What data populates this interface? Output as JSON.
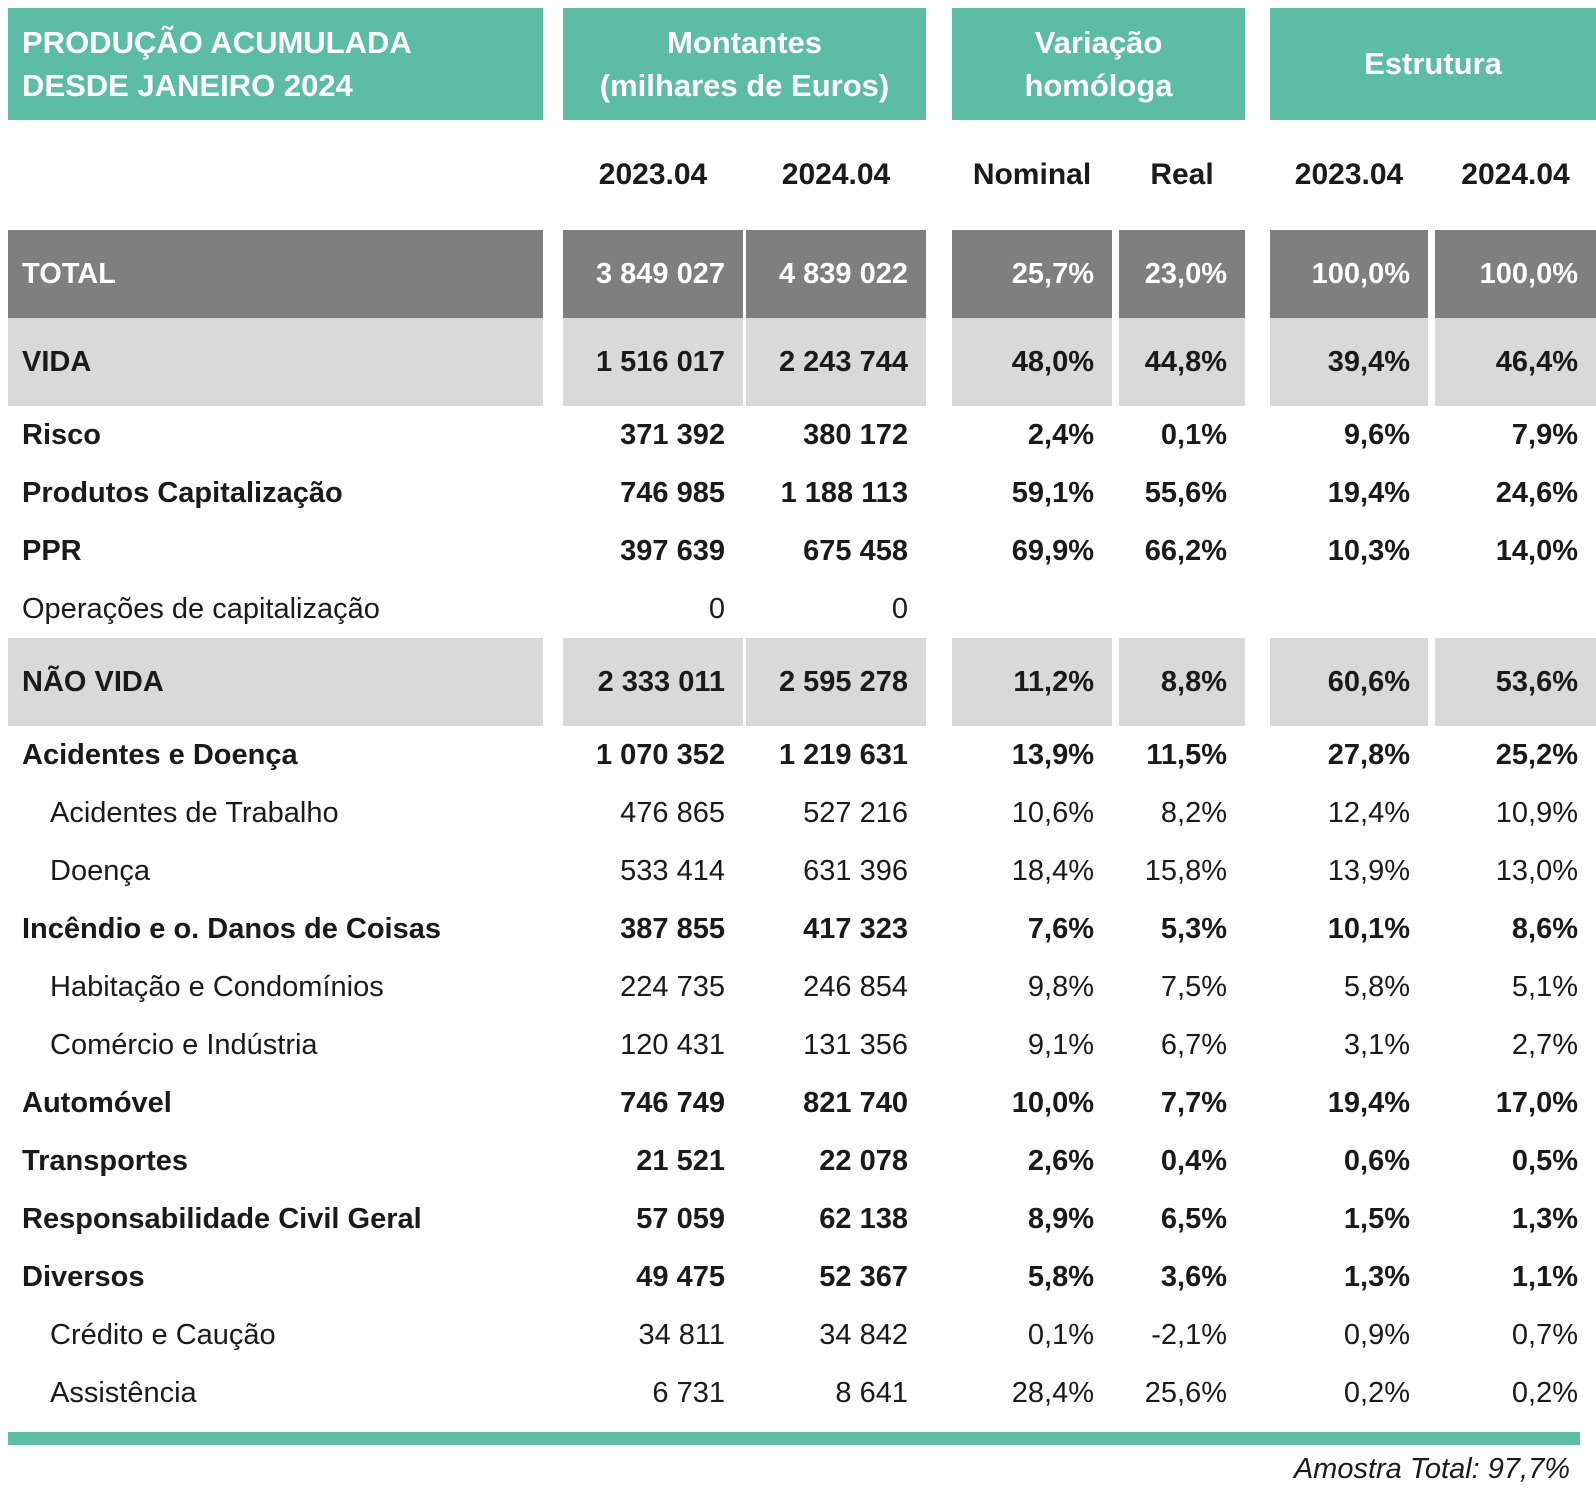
{
  "colors": {
    "teal": "#5CBCA4",
    "dark_row": "#7F7F7F",
    "light_row": "#D9D9D9",
    "ink": "#1a1a1a"
  },
  "header": {
    "title_line1": "PRODUÇÃO ACUMULADA",
    "title_line2": "DESDE JANEIRO 2024",
    "groups": [
      {
        "line1": "Montantes",
        "line2": "(milhares de Euros)"
      },
      {
        "line1": "Variação",
        "line2": "homóloga"
      },
      {
        "line1": "Estrutura",
        "line2": ""
      }
    ],
    "subheaders": [
      "2023.04",
      "2024.04",
      "Nominal",
      "Real",
      "2023.04",
      "2024.04"
    ]
  },
  "rows": [
    {
      "label": "TOTAL",
      "style": "total",
      "values": [
        "3 849 027",
        "4 839 022",
        "25,7%",
        "23,0%",
        "100,0%",
        "100,0%"
      ]
    },
    {
      "label": "VIDA",
      "style": "section",
      "values": [
        "1 516 017",
        "2 243 744",
        "48,0%",
        "44,8%",
        "39,4%",
        "46,4%"
      ]
    },
    {
      "label": "Risco",
      "style": "bold",
      "values": [
        "371 392",
        "380 172",
        "2,4%",
        "0,1%",
        "9,6%",
        "7,9%"
      ]
    },
    {
      "label": "Produtos Capitalização",
      "style": "bold",
      "values": [
        "746 985",
        "1 188 113",
        "59,1%",
        "55,6%",
        "19,4%",
        "24,6%"
      ]
    },
    {
      "label": "PPR",
      "style": "bold",
      "values": [
        "397 639",
        "675 458",
        "69,9%",
        "66,2%",
        "10,3%",
        "14,0%"
      ]
    },
    {
      "label": "Operações de capitalização",
      "style": "normal",
      "values": [
        "0",
        "0",
        "",
        "",
        "",
        ""
      ]
    },
    {
      "label": "NÃO VIDA",
      "style": "section",
      "values": [
        "2 333 011",
        "2 595 278",
        "11,2%",
        "8,8%",
        "60,6%",
        "53,6%"
      ]
    },
    {
      "label": "Acidentes e Doença",
      "style": "bold",
      "values": [
        "1 070 352",
        "1 219 631",
        "13,9%",
        "11,5%",
        "27,8%",
        "25,2%"
      ]
    },
    {
      "label": "Acidentes de Trabalho",
      "style": "sub",
      "values": [
        "476 865",
        "527 216",
        "10,6%",
        "8,2%",
        "12,4%",
        "10,9%"
      ]
    },
    {
      "label": "Doença",
      "style": "sub",
      "values": [
        "533 414",
        "631 396",
        "18,4%",
        "15,8%",
        "13,9%",
        "13,0%"
      ]
    },
    {
      "label": "Incêndio e o. Danos de Coisas",
      "style": "bold",
      "values": [
        "387 855",
        "417 323",
        "7,6%",
        "5,3%",
        "10,1%",
        "8,6%"
      ]
    },
    {
      "label": "Habitação e Condomínios",
      "style": "sub",
      "values": [
        "224 735",
        "246 854",
        "9,8%",
        "7,5%",
        "5,8%",
        "5,1%"
      ]
    },
    {
      "label": "Comércio e Indústria",
      "style": "sub",
      "values": [
        "120 431",
        "131 356",
        "9,1%",
        "6,7%",
        "3,1%",
        "2,7%"
      ]
    },
    {
      "label": "Automóvel",
      "style": "bold",
      "values": [
        "746 749",
        "821 740",
        "10,0%",
        "7,7%",
        "19,4%",
        "17,0%"
      ]
    },
    {
      "label": "Transportes",
      "style": "bold",
      "values": [
        "21 521",
        "22 078",
        "2,6%",
        "0,4%",
        "0,6%",
        "0,5%"
      ]
    },
    {
      "label": "Responsabilidade Civil Geral",
      "style": "bold",
      "values": [
        "57 059",
        "62 138",
        "8,9%",
        "6,5%",
        "1,5%",
        "1,3%"
      ]
    },
    {
      "label": "Diversos",
      "style": "bold",
      "values": [
        "49 475",
        "52 367",
        "5,8%",
        "3,6%",
        "1,3%",
        "1,1%"
      ]
    },
    {
      "label": "Crédito e Caução",
      "style": "sub",
      "values": [
        "34 811",
        "34 842",
        "0,1%",
        "-2,1%",
        "0,9%",
        "0,7%"
      ]
    },
    {
      "label": "Assistência",
      "style": "sub",
      "values": [
        "6 731",
        "8 641",
        "28,4%",
        "25,6%",
        "0,2%",
        "0,2%"
      ]
    }
  ],
  "footer": {
    "note": "Amostra Total: 97,7%"
  }
}
